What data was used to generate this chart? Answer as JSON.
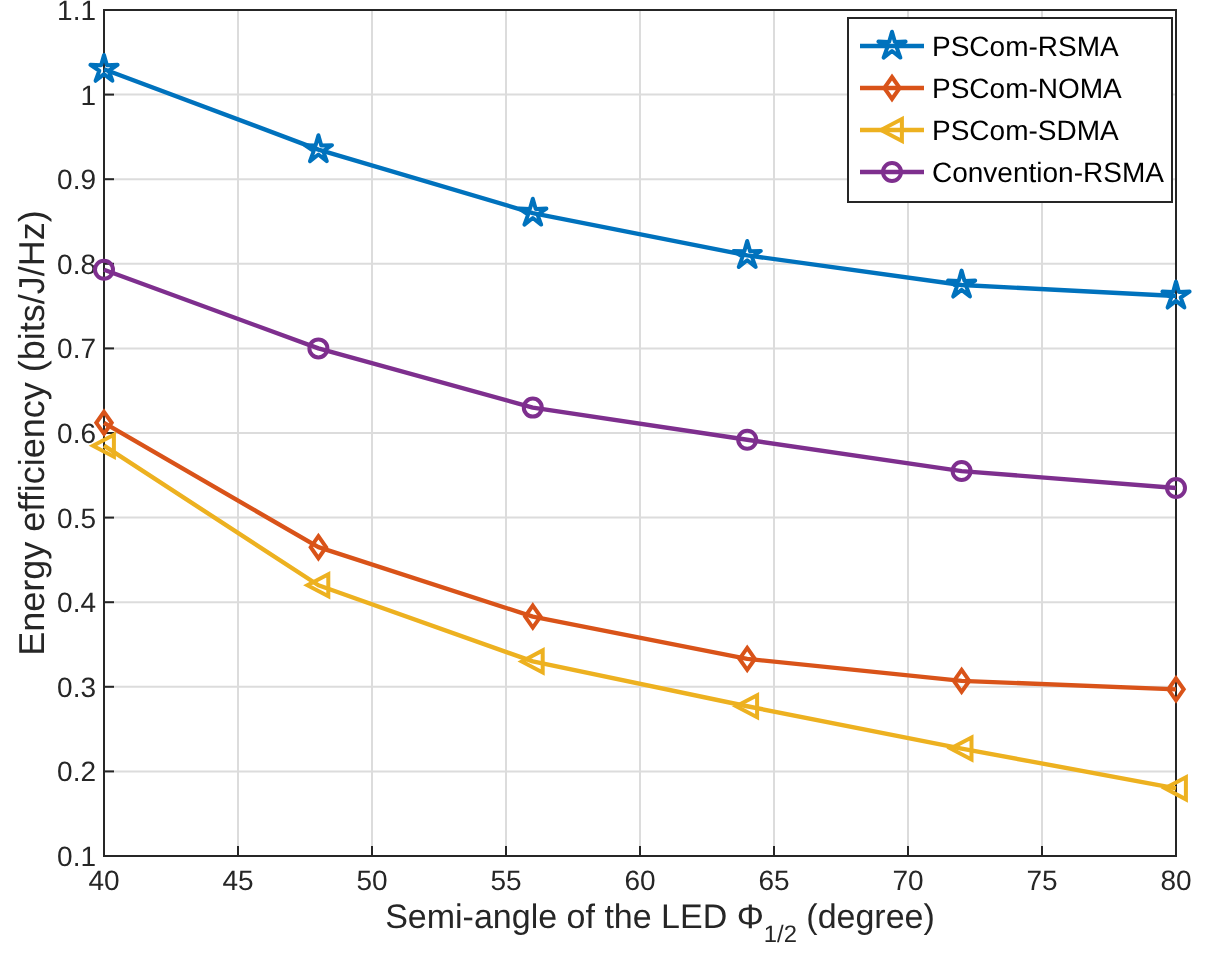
{
  "chart_data": {
    "type": "line",
    "xlabel": "Semi-angle of the LED Φ$_{1/2}$ (degree)",
    "ylabel": "Energy efficiency (bits/J/Hz)",
    "x": [
      40,
      48,
      56,
      64,
      72,
      80
    ],
    "series": [
      {
        "name": "PSCom-RSMA",
        "color": "#0072bd",
        "marker": "star",
        "values": [
          1.03,
          0.935,
          0.86,
          0.81,
          0.775,
          0.762
        ]
      },
      {
        "name": "PSCom-NOMA",
        "color": "#d95319",
        "marker": "diamond",
        "values": [
          0.612,
          0.465,
          0.383,
          0.333,
          0.307,
          0.297
        ]
      },
      {
        "name": "PSCom-SDMA",
        "color": "#edb120",
        "marker": "triangle",
        "values": [
          0.585,
          0.42,
          0.33,
          0.277,
          0.227,
          0.18
        ]
      },
      {
        "name": "Convention-RSMA",
        "color": "#7e2f8e",
        "marker": "circle",
        "values": [
          0.793,
          0.7,
          0.63,
          0.592,
          0.555,
          0.535
        ]
      }
    ],
    "xlim": [
      40,
      80
    ],
    "xticks": [
      40,
      45,
      50,
      55,
      60,
      65,
      70,
      75,
      80
    ],
    "ylim": [
      0.1,
      1.1
    ],
    "yticks": [
      0.1,
      0.2,
      0.3,
      0.4,
      0.5,
      0.6,
      0.7,
      0.8,
      0.9,
      1,
      1.1
    ],
    "grid": true,
    "legend": "top right",
    "line_style": "solid"
  }
}
